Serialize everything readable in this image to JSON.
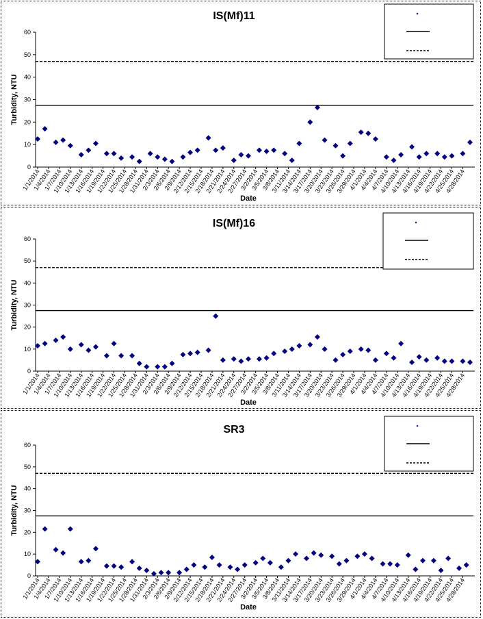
{
  "chart_data": [
    {
      "type": "scatter",
      "title": "IS(Mf)11",
      "xlabel": "Date",
      "ylabel": "Turbidity, NTU",
      "ylim": [
        0,
        60
      ],
      "yticks": [
        "0",
        "10",
        "20",
        "30",
        "40",
        "50",
        "60"
      ],
      "xlim": [
        "2014-01-01",
        "2014-04-30"
      ],
      "xtick_labels": [
        "1/1/2014",
        "1/4/2014",
        "1/7/2014",
        "1/10/2014",
        "1/13/2014",
        "1/16/2014",
        "1/19/2014",
        "1/22/2014",
        "1/25/2014",
        "1/28/2014",
        "1/31/2014",
        "2/3/2014",
        "2/6/2014",
        "2/9/2014",
        "2/12/2014",
        "2/15/2014",
        "2/18/2014",
        "2/21/2014",
        "2/24/2014",
        "2/27/2014",
        "3/2/2014",
        "3/5/2014",
        "3/8/2014",
        "3/11/2014",
        "3/14/2014",
        "3/17/2014",
        "3/20/2014",
        "3/23/2014",
        "3/26/2014",
        "3/29/2014",
        "4/1/2014",
        "4/4/2014",
        "4/7/2014",
        "4/10/2014",
        "4/13/2014",
        "4/16/2014",
        "4/19/2014",
        "4/22/2014",
        "4/25/2014",
        "4/28/2014"
      ],
      "reference_lines": [
        {
          "value": 27.5,
          "style": "solid"
        },
        {
          "value": 47,
          "style": "dashed"
        }
      ],
      "legend_placement": "top-right",
      "marker_color": "#000080",
      "series": [
        {
          "x": [
            "2014-01-01",
            "2014-01-03",
            "2014-01-06",
            "2014-01-08",
            "2014-01-10",
            "2014-01-13",
            "2014-01-15",
            "2014-01-17",
            "2014-01-20",
            "2014-01-22",
            "2014-01-24",
            "2014-01-27",
            "2014-01-29",
            "2014-02-01",
            "2014-02-03",
            "2014-02-05",
            "2014-02-07",
            "2014-02-10",
            "2014-02-12",
            "2014-02-14",
            "2014-02-17",
            "2014-02-19",
            "2014-02-21",
            "2014-02-24",
            "2014-02-26",
            "2014-02-28",
            "2014-03-03",
            "2014-03-05",
            "2014-03-07",
            "2014-03-10",
            "2014-03-12",
            "2014-03-14",
            "2014-03-17",
            "2014-03-19",
            "2014-03-21",
            "2014-03-24",
            "2014-03-26",
            "2014-03-28",
            "2014-03-31",
            "2014-04-02",
            "2014-04-04",
            "2014-04-07",
            "2014-04-09",
            "2014-04-11",
            "2014-04-14",
            "2014-04-16",
            "2014-04-18",
            "2014-04-21",
            "2014-04-23",
            "2014-04-25",
            "2014-04-28",
            "2014-04-30"
          ],
          "y": [
            12.5,
            17,
            11,
            12,
            9.5,
            5.5,
            7.5,
            10.5,
            6,
            6,
            4,
            4.5,
            2.5,
            6,
            4.5,
            3.5,
            2.5,
            4.5,
            6.5,
            7.5,
            13,
            7.5,
            8.5,
            3,
            5.5,
            5,
            7.5,
            7,
            7.5,
            6,
            3,
            10.5,
            20,
            26.5,
            12,
            9.5,
            5,
            10.5,
            15.5,
            15,
            12.5,
            4.5,
            3,
            5.5,
            9,
            4.5,
            6,
            6,
            4.5,
            5,
            6,
            11
          ]
        }
      ]
    },
    {
      "type": "scatter",
      "title": "IS(Mf)16",
      "xlabel": "Date",
      "ylabel": "Turbidity, NTU",
      "ylim": [
        0,
        60
      ],
      "yticks": [
        "0",
        "10",
        "20",
        "30",
        "40",
        "50",
        "60"
      ],
      "xlim": [
        "2014-01-01",
        "2014-04-30"
      ],
      "xtick_labels": [
        "1/1/2014",
        "1/4/2014",
        "1/7/2014",
        "1/10/2014",
        "1/13/2014",
        "1/16/2014",
        "1/19/2014",
        "1/22/2014",
        "1/25/2014",
        "1/28/2014",
        "1/31/2014",
        "2/3/2014",
        "2/6/2014",
        "2/9/2014",
        "2/12/2014",
        "2/15/2014",
        "2/18/2014",
        "2/21/2014",
        "2/24/2014",
        "2/27/2014",
        "3/2/2014",
        "3/5/2014",
        "3/8/2014",
        "3/11/2014",
        "3/14/2014",
        "3/17/2014",
        "3/20/2014",
        "3/23/2014",
        "3/26/2014",
        "3/29/2014",
        "4/1/2014",
        "4/4/2014",
        "4/7/2014",
        "4/10/2014",
        "4/13/2014",
        "4/16/2014",
        "4/19/2014",
        "4/22/2014",
        "4/25/2014",
        "4/28/2014"
      ],
      "reference_lines": [
        {
          "value": 27.5,
          "style": "solid"
        },
        {
          "value": 47,
          "style": "dashed"
        }
      ],
      "legend_placement": "top-right",
      "marker_color": "#000080",
      "series": [
        {
          "x": [
            "2014-01-01",
            "2014-01-03",
            "2014-01-06",
            "2014-01-08",
            "2014-01-10",
            "2014-01-13",
            "2014-01-15",
            "2014-01-17",
            "2014-01-20",
            "2014-01-22",
            "2014-01-24",
            "2014-01-27",
            "2014-01-29",
            "2014-01-31",
            "2014-02-03",
            "2014-02-05",
            "2014-02-07",
            "2014-02-10",
            "2014-02-12",
            "2014-02-14",
            "2014-02-17",
            "2014-02-19",
            "2014-02-21",
            "2014-02-24",
            "2014-02-26",
            "2014-02-28",
            "2014-03-03",
            "2014-03-05",
            "2014-03-07",
            "2014-03-10",
            "2014-03-12",
            "2014-03-14",
            "2014-03-17",
            "2014-03-19",
            "2014-03-21",
            "2014-03-24",
            "2014-03-26",
            "2014-03-28",
            "2014-03-31",
            "2014-04-02",
            "2014-04-04",
            "2014-04-07",
            "2014-04-09",
            "2014-04-11",
            "2014-04-14",
            "2014-04-16",
            "2014-04-18",
            "2014-04-21",
            "2014-04-23",
            "2014-04-25",
            "2014-04-28",
            "2014-04-30"
          ],
          "y": [
            11.5,
            12.5,
            14,
            15.5,
            10,
            12,
            9.5,
            11,
            7,
            12.5,
            7,
            7,
            3.5,
            2,
            2,
            2,
            3.5,
            7.5,
            8,
            8.5,
            9.5,
            25,
            5,
            5.5,
            4.5,
            5.5,
            5.5,
            6,
            8,
            9,
            10,
            11.5,
            12,
            15.5,
            10,
            5,
            7.5,
            9,
            10,
            9.5,
            5,
            8,
            6,
            12.5,
            4,
            6.5,
            5,
            6,
            4.5,
            4.5,
            4.5,
            4
          ]
        }
      ]
    },
    {
      "type": "scatter",
      "title": "SR3",
      "xlabel": "Date",
      "ylabel": "Turbidity, NTU",
      "ylim": [
        0,
        60
      ],
      "yticks": [
        "0",
        "10",
        "20",
        "30",
        "40",
        "50",
        "60"
      ],
      "xlim": [
        "2014-01-01",
        "2014-04-30"
      ],
      "xtick_labels": [
        "1/1/2014",
        "1/4/2014",
        "1/7/2014",
        "1/10/2014",
        "1/13/2014",
        "1/16/2014",
        "1/19/2014",
        "1/22/2014",
        "1/25/2014",
        "1/28/2014",
        "1/31/2014",
        "2/3/2014",
        "2/6/2014",
        "2/9/2014",
        "2/12/2014",
        "2/15/2014",
        "2/18/2014",
        "2/21/2014",
        "2/24/2014",
        "2/27/2014",
        "3/2/2014",
        "3/5/2014",
        "3/8/2014",
        "3/11/2014",
        "3/14/2014",
        "3/17/2014",
        "3/20/2014",
        "3/23/2014",
        "3/26/2014",
        "3/29/2014",
        "4/1/2014",
        "4/4/2014",
        "4/7/2014",
        "4/10/2014",
        "4/13/2014",
        "4/16/2014",
        "4/19/2014",
        "4/22/2014",
        "4/25/2014",
        "4/28/2014"
      ],
      "reference_lines": [
        {
          "value": 27.5,
          "style": "solid"
        },
        {
          "value": 47,
          "style": "dashed"
        }
      ],
      "legend_placement": "top-right",
      "marker_color": "#000080",
      "series": [
        {
          "x": [
            "2014-01-01",
            "2014-01-03",
            "2014-01-06",
            "2014-01-08",
            "2014-01-10",
            "2014-01-13",
            "2014-01-15",
            "2014-01-17",
            "2014-01-20",
            "2014-01-22",
            "2014-01-24",
            "2014-01-27",
            "2014-01-29",
            "2014-01-31",
            "2014-02-02",
            "2014-02-04",
            "2014-02-06",
            "2014-02-09",
            "2014-02-11",
            "2014-02-13",
            "2014-02-16",
            "2014-02-18",
            "2014-02-20",
            "2014-02-23",
            "2014-02-25",
            "2014-02-27",
            "2014-03-02",
            "2014-03-04",
            "2014-03-06",
            "2014-03-09",
            "2014-03-11",
            "2014-03-13",
            "2014-03-16",
            "2014-03-18",
            "2014-03-20",
            "2014-03-23",
            "2014-03-25",
            "2014-03-27",
            "2014-03-30",
            "2014-04-01",
            "2014-04-03",
            "2014-04-06",
            "2014-04-08",
            "2014-04-10",
            "2014-04-13",
            "2014-04-15",
            "2014-04-17",
            "2014-04-20",
            "2014-04-22",
            "2014-04-24",
            "2014-04-27",
            "2014-04-29"
          ],
          "y": [
            6.5,
            21.5,
            12,
            10.5,
            21.5,
            6.5,
            7,
            12.5,
            4.5,
            4.5,
            4,
            6.5,
            3.5,
            2.5,
            1,
            1.5,
            1.5,
            1.5,
            3,
            5,
            4,
            8.5,
            5,
            4,
            3,
            5,
            6,
            8,
            6,
            4,
            7,
            10,
            8,
            10.5,
            9.5,
            9,
            5.5,
            7,
            9,
            10,
            8,
            5.5,
            5.5,
            5,
            9.5,
            3,
            7,
            7,
            2.5,
            8,
            3.5,
            5
          ]
        }
      ]
    }
  ]
}
